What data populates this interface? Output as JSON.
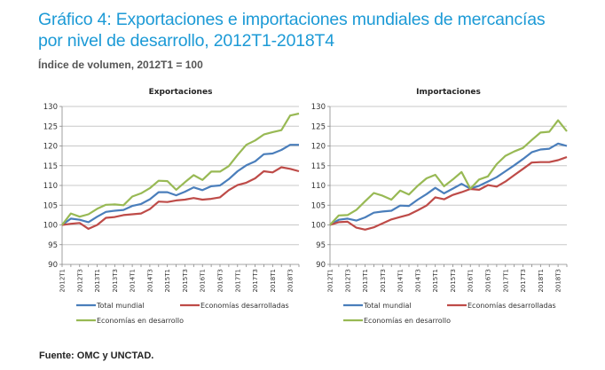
{
  "header": {
    "title_line1": "Gráfico 4: Exportaciones e importaciones mundiales de mercancías",
    "title_line2": "por nivel de desarrollo, 2012T1-2018T4",
    "subtitle": "Índice de volumen, 2012T1 = 100"
  },
  "footer": {
    "source": "Fuente: OMC y UNCTAD."
  },
  "colors": {
    "title": "#1c9ad6",
    "total": "#4a7ebb",
    "developed": "#be4b48",
    "developing": "#98b954",
    "grid": "#c8c8c8"
  },
  "chart_data": [
    {
      "type": "line",
      "title": "Exportaciones",
      "xlabel": "",
      "ylabel": "",
      "ylim": [
        90,
        130
      ],
      "yticks": [
        90,
        95,
        100,
        105,
        110,
        115,
        120,
        125,
        130
      ],
      "grid": true,
      "legend": "bottom",
      "x": [
        "2012T1",
        "2012T2",
        "2012T3",
        "2012T4",
        "2013T1",
        "2013T2",
        "2013T3",
        "2013T4",
        "2014T1",
        "2014T2",
        "2014T3",
        "2014T4",
        "2015T1",
        "2015T2",
        "2015T3",
        "2015T4",
        "2016T1",
        "2016T2",
        "2016T3",
        "2016T4",
        "2017T1",
        "2017T2",
        "2017T3",
        "2017T4",
        "2018T1",
        "2018T2",
        "2018T3",
        "2018T4"
      ],
      "xtick_labels": [
        "2012T1",
        "2012T3",
        "2013T1",
        "2013T3",
        "2014T1",
        "2014T3",
        "2015T1",
        "2015T3",
        "2016T1",
        "2016T3",
        "2017T1",
        "2017T3",
        "2018T1",
        "2018T3"
      ],
      "series": [
        {
          "name": "Total mundial",
          "color": "#4a7ebb",
          "values": [
            100,
            101.6,
            101.3,
            100.7,
            102.1,
            103.3,
            103.6,
            103.8,
            104.8,
            105.3,
            106.5,
            108.3,
            108.3,
            107.5,
            108.4,
            109.5,
            108.8,
            109.8,
            110.0,
            111.6,
            113.6,
            115.1,
            116.1,
            117.9,
            118.1,
            119.0,
            120.3,
            120.3
          ]
        },
        {
          "name": "Economías desarrolladas",
          "color": "#be4b48",
          "values": [
            100,
            100.3,
            100.5,
            99.0,
            100.0,
            101.8,
            102.0,
            102.5,
            102.7,
            102.9,
            104.0,
            105.9,
            105.8,
            106.2,
            106.4,
            106.8,
            106.4,
            106.6,
            107.0,
            108.8,
            110.1,
            110.7,
            111.8,
            113.6,
            113.3,
            114.6,
            114.2,
            113.6
          ]
        },
        {
          "name": "Economías en desarrollo",
          "color": "#98b954",
          "values": [
            100,
            102.9,
            102.1,
            102.7,
            104.1,
            105.1,
            105.2,
            105.0,
            107.2,
            108.0,
            109.3,
            111.2,
            111.1,
            108.9,
            110.8,
            112.6,
            111.4,
            113.5,
            113.5,
            114.9,
            117.7,
            120.3,
            121.4,
            122.9,
            123.5,
            124.0,
            127.7,
            128.2
          ]
        }
      ]
    },
    {
      "type": "line",
      "title": "Importaciones",
      "xlabel": "",
      "ylabel": "",
      "ylim": [
        90,
        130
      ],
      "yticks": [
        90,
        95,
        100,
        105,
        110,
        115,
        120,
        125,
        130
      ],
      "grid": true,
      "legend": "bottom",
      "x": [
        "2012T1",
        "2012T2",
        "2012T3",
        "2012T4",
        "2013T1",
        "2013T2",
        "2013T3",
        "2013T4",
        "2014T1",
        "2014T2",
        "2014T3",
        "2014T4",
        "2015T1",
        "2015T2",
        "2015T3",
        "2015T4",
        "2016T1",
        "2016T2",
        "2016T3",
        "2016T4",
        "2017T1",
        "2017T2",
        "2017T3",
        "2017T4",
        "2018T1",
        "2018T2",
        "2018T3",
        "2018T4"
      ],
      "xtick_labels": [
        "2012T1",
        "2012T3",
        "2013T1",
        "2013T3",
        "2014T1",
        "2014T3",
        "2015T1",
        "2015T3",
        "2016T1",
        "2016T3",
        "2017T1",
        "2017T3",
        "2018T1",
        "2018T3"
      ],
      "series": [
        {
          "name": "Total mundial",
          "color": "#4a7ebb",
          "values": [
            100,
            101.3,
            101.6,
            101.1,
            101.9,
            103.1,
            103.4,
            103.6,
            104.9,
            104.8,
            106.4,
            107.8,
            109.4,
            108.0,
            109.2,
            110.4,
            109.2,
            109.9,
            111.0,
            112.1,
            113.6,
            115.1,
            116.7,
            118.4,
            119.1,
            119.3,
            120.6,
            120.0
          ]
        },
        {
          "name": "Economías desarrolladas",
          "color": "#be4b48",
          "values": [
            100,
            100.7,
            100.8,
            99.3,
            98.8,
            99.4,
            100.4,
            101.4,
            102.0,
            102.6,
            103.7,
            104.9,
            107.0,
            106.5,
            107.6,
            108.3,
            109.1,
            108.9,
            110.1,
            109.7,
            111.0,
            112.6,
            114.2,
            115.8,
            115.9,
            115.9,
            116.4,
            117.2
          ]
        },
        {
          "name": "Economías en desarrollo",
          "color": "#98b954",
          "values": [
            100,
            102.4,
            102.5,
            103.8,
            106.0,
            108.1,
            107.4,
            106.4,
            108.7,
            107.7,
            109.9,
            111.8,
            112.7,
            109.8,
            111.5,
            113.4,
            109.2,
            111.5,
            112.3,
            115.4,
            117.5,
            118.6,
            119.5,
            121.5,
            123.4,
            123.6,
            126.5,
            123.7
          ]
        }
      ]
    }
  ]
}
